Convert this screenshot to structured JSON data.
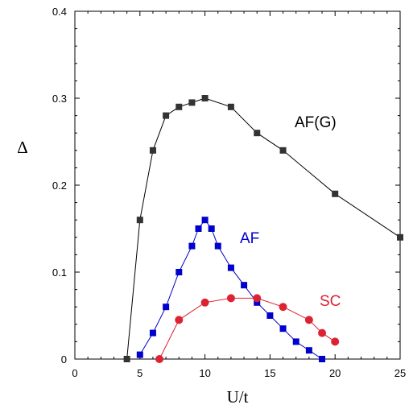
{
  "chart_data": {
    "type": "line",
    "title": "",
    "xlabel": "U/t",
    "ylabel": "Δ",
    "xlim": [
      0,
      25
    ],
    "ylim": [
      0,
      0.4
    ],
    "x_ticks": [
      "0",
      "5",
      "10",
      "15",
      "20",
      "25"
    ],
    "y_ticks": [
      "0",
      "0.1",
      "0.2",
      "0.3",
      "0.4"
    ],
    "grid": false,
    "series": [
      {
        "name": "AF(G)",
        "color": "#000000",
        "marker": "square",
        "marker_color": "#333333",
        "points": [
          [
            4,
            0
          ],
          [
            5,
            0.16
          ],
          [
            6,
            0.24
          ],
          [
            7,
            0.28
          ],
          [
            8,
            0.29
          ],
          [
            9,
            0.295
          ],
          [
            10,
            0.3
          ],
          [
            12,
            0.29
          ],
          [
            14,
            0.26
          ],
          [
            16,
            0.24
          ],
          [
            20,
            0.19
          ],
          [
            25,
            0.14
          ]
        ]
      },
      {
        "name": "AF",
        "color": "#0000cc",
        "marker": "square",
        "marker_color": "#0000cc",
        "points": [
          [
            5,
            0.005
          ],
          [
            6,
            0.03
          ],
          [
            7,
            0.06
          ],
          [
            8,
            0.1
          ],
          [
            9,
            0.13
          ],
          [
            9.5,
            0.15
          ],
          [
            10,
            0.16
          ],
          [
            10.5,
            0.15
          ],
          [
            11,
            0.13
          ],
          [
            12,
            0.105
          ],
          [
            13,
            0.085
          ],
          [
            14,
            0.065
          ],
          [
            15,
            0.05
          ],
          [
            16,
            0.035
          ],
          [
            17,
            0.02
          ],
          [
            18,
            0.01
          ],
          [
            19,
            0
          ]
        ]
      },
      {
        "name": "SC",
        "color": "#dd2233",
        "marker": "circle",
        "marker_color": "#dd2233",
        "points": [
          [
            6.5,
            0
          ],
          [
            8,
            0.045
          ],
          [
            10,
            0.065
          ],
          [
            12,
            0.07
          ],
          [
            14,
            0.07
          ],
          [
            16,
            0.06
          ],
          [
            18,
            0.045
          ],
          [
            19,
            0.03
          ],
          [
            20,
            0.02
          ]
        ]
      }
    ]
  }
}
